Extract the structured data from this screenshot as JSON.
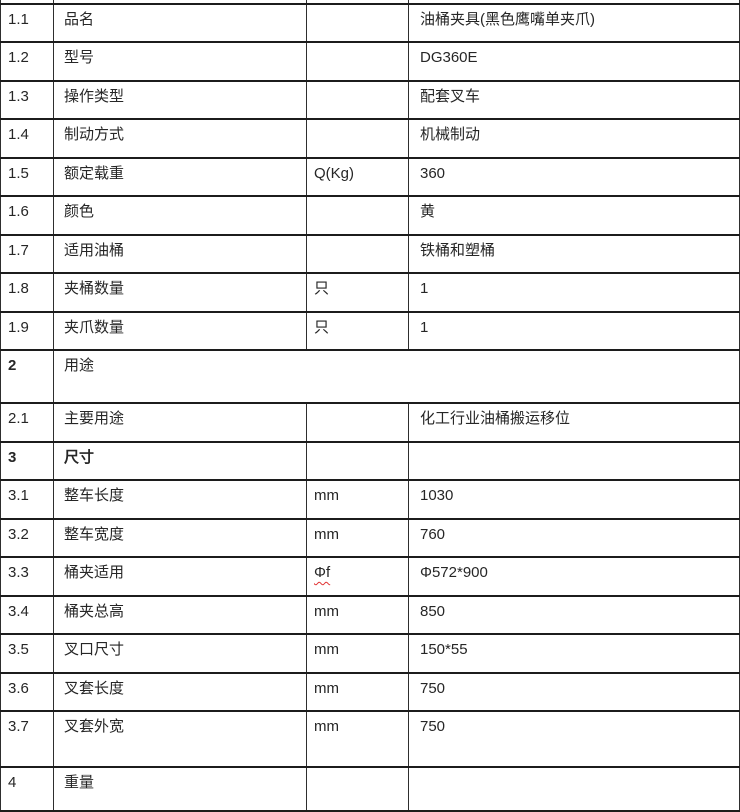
{
  "table": {
    "rows": [
      {
        "num": "1.1",
        "label": "品名",
        "unit": "",
        "value": "油桶夹具(黑色鹰嘴单夹爪)"
      },
      {
        "num": "1.2",
        "label": "型号",
        "unit": "",
        "value": "DG360E"
      },
      {
        "num": "1.3",
        "label": "操作类型",
        "unit": "",
        "value": "配套叉车"
      },
      {
        "num": "1.4",
        "label": "制动方式",
        "unit": "",
        "value": "机械制动"
      },
      {
        "num": "1.5",
        "label": "额定载重",
        "unit": "Q(Kg)",
        "value": "360"
      },
      {
        "num": "1.6",
        "label": "颜色",
        "unit": "",
        "value": "黄"
      },
      {
        "num": "1.7",
        "label": "适用油桶",
        "unit": "",
        "value": "铁桶和塑桶"
      },
      {
        "num": "1.8",
        "label": "夹桶数量",
        "unit": "只",
        "value": "1"
      },
      {
        "num": "1.9",
        "label": "夹爪数量",
        "unit": "只",
        "value": "1"
      },
      {
        "num": "2",
        "label": "用途",
        "span": true,
        "tall": true,
        "num_bold": true
      },
      {
        "num": "2.1",
        "label": "主要用途",
        "unit": "",
        "value": "化工行业油桶搬运移位"
      },
      {
        "num": "3",
        "label": "尺寸",
        "unit": "",
        "value": "",
        "num_bold": true,
        "label_bold": true
      },
      {
        "num": "3.1",
        "label": "整车长度",
        "unit": "mm",
        "value": "1030"
      },
      {
        "num": "3.2",
        "label": "整车宽度",
        "unit": "mm",
        "value": "760"
      },
      {
        "num": "3.3",
        "label": "桶夹适用",
        "unit": "Φf",
        "value": "Φ572*900",
        "unit_wavy": true
      },
      {
        "num": "3.4",
        "label": "桶夹总高",
        "unit": "mm",
        "value": "850"
      },
      {
        "num": "3.5",
        "label": "叉口尺寸",
        "unit": "mm",
        "value": "150*55"
      },
      {
        "num": "3.6",
        "label": "叉套长度",
        "unit": "mm",
        "value": "750"
      },
      {
        "num": "3.7",
        "label": "叉套外宽",
        "unit": "mm",
        "value": "750",
        "tall2": true
      }
    ],
    "cropped_top_row": true,
    "cropped_bottom_row": {
      "num": "4",
      "label": "重量",
      "unit": "",
      "value": ""
    },
    "colors": {
      "border_horizontal": "#1c1c1c",
      "border_vertical": "#2e2e2e",
      "text": "#262626",
      "spellcheck_underline": "#e03030",
      "background": "#ffffff"
    }
  }
}
